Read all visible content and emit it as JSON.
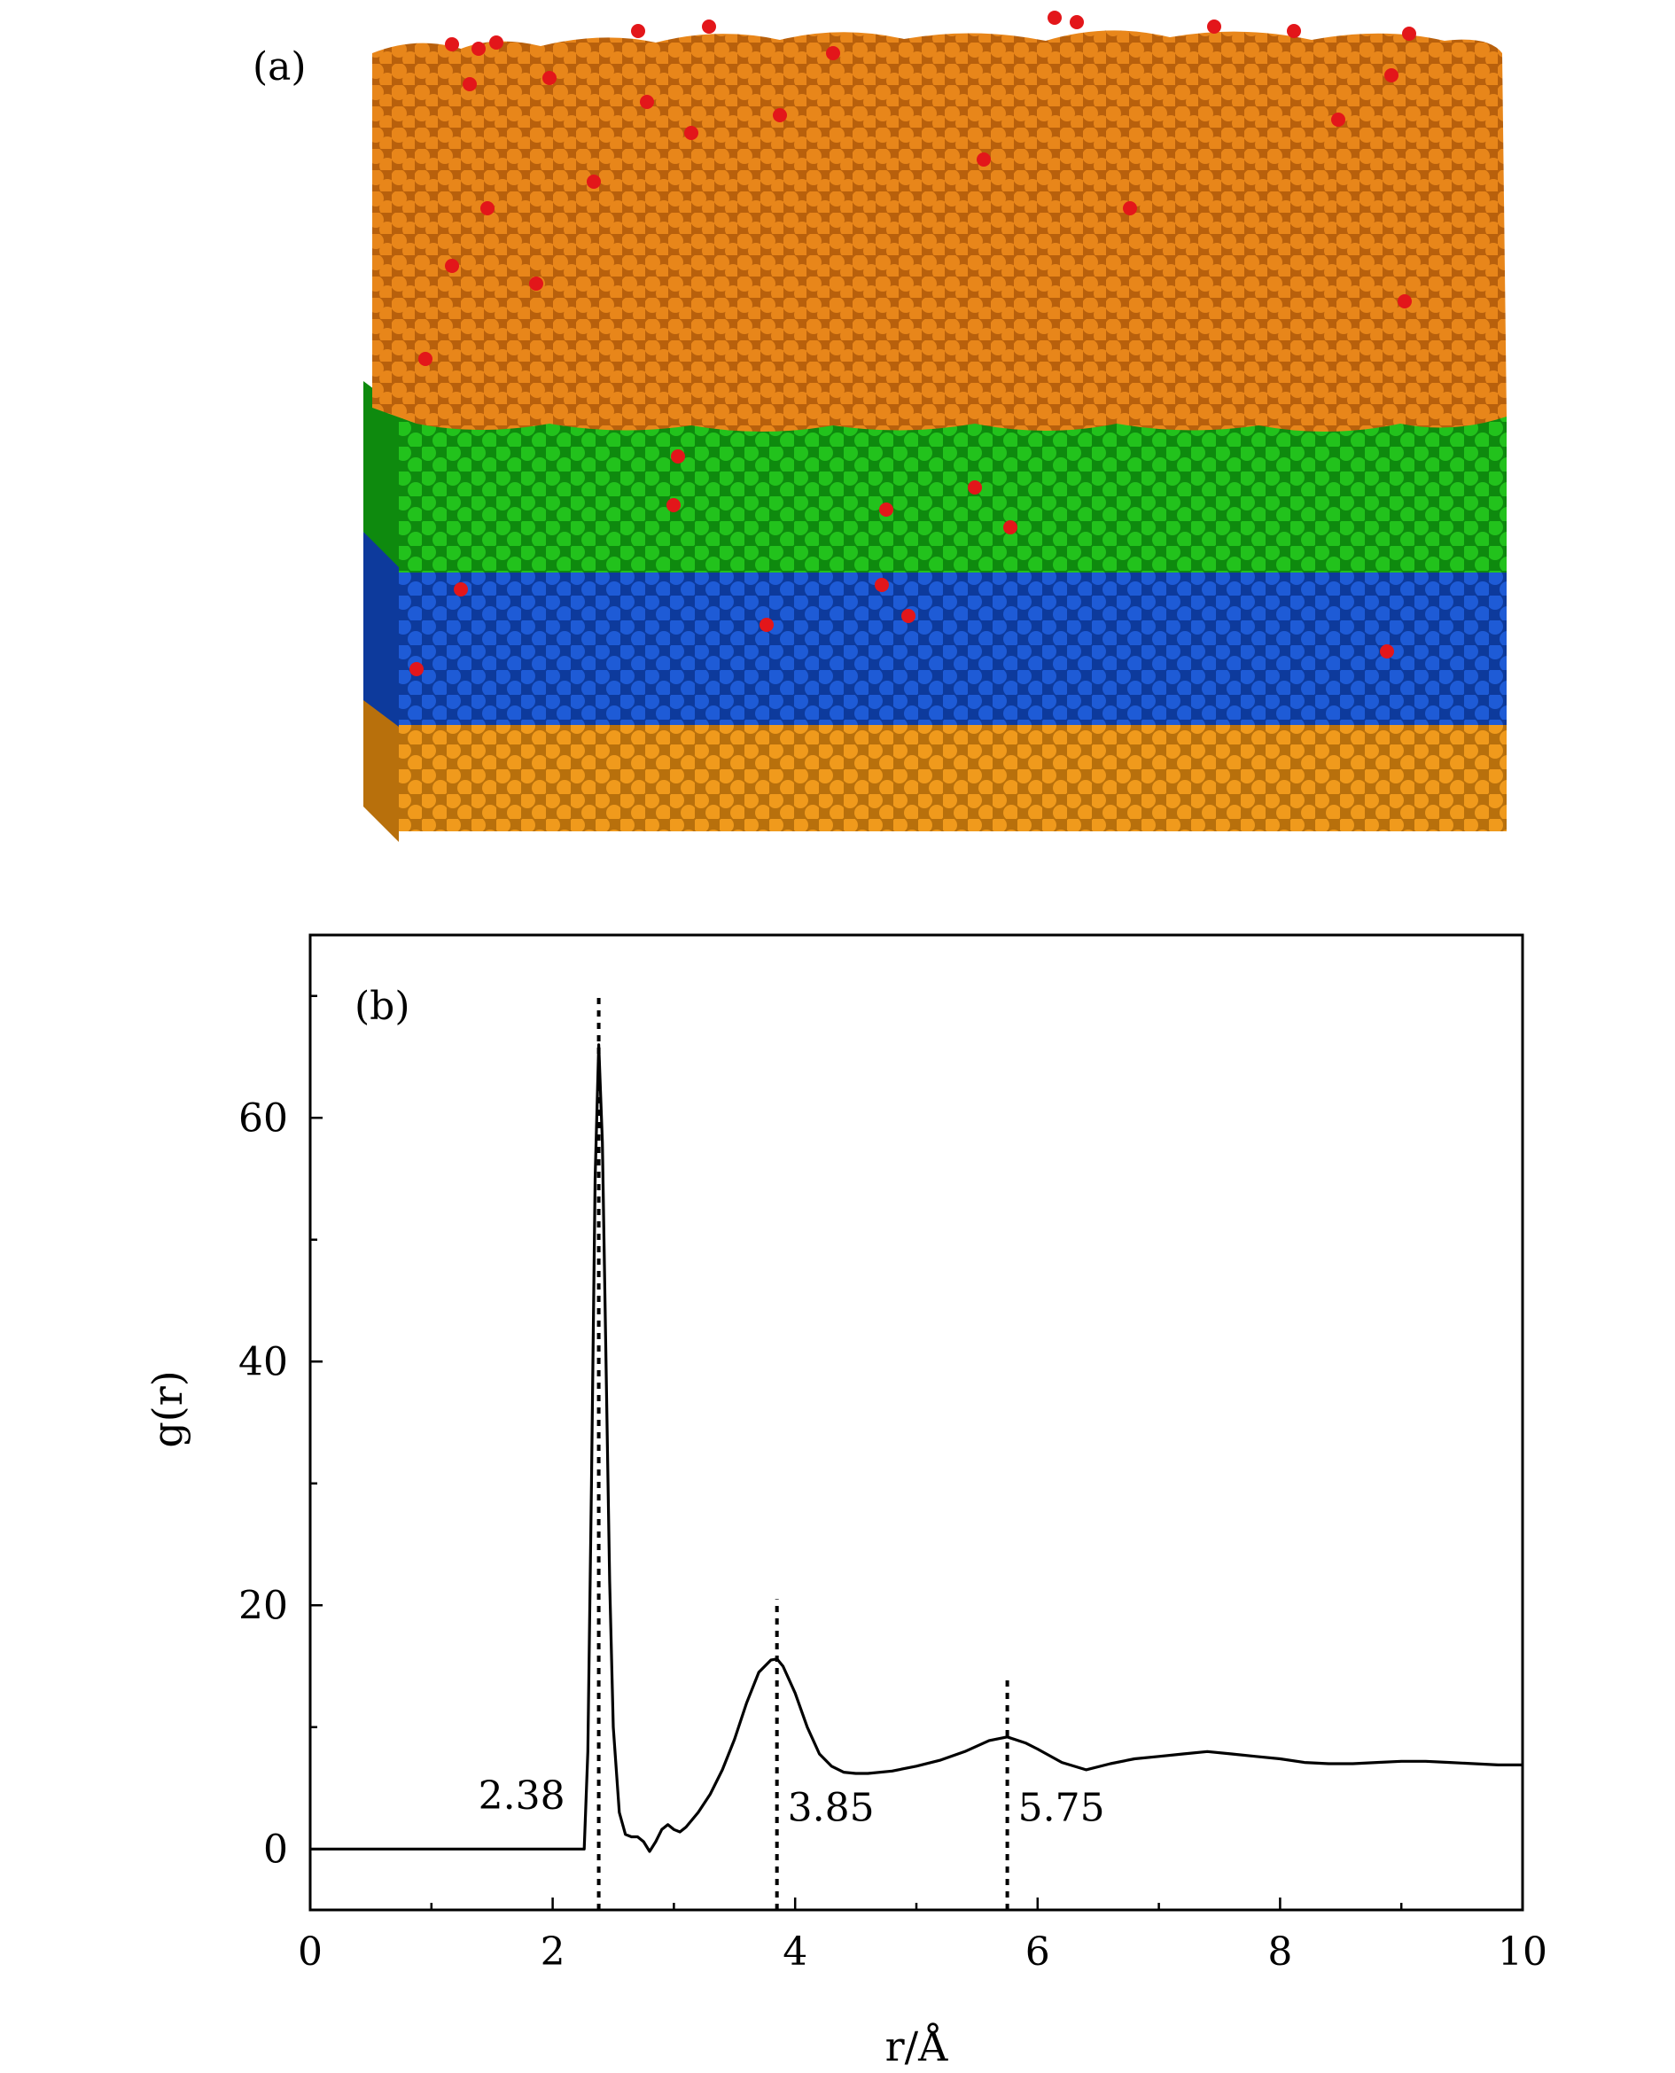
{
  "panel_a": {
    "label": "(a)",
    "layers": [
      {
        "name": "top-film",
        "color": "#E8861A",
        "shade": "#B8600C"
      },
      {
        "name": "green-layer",
        "color": "#22C21C",
        "shade": "#0E8A0E"
      },
      {
        "name": "blue-layer",
        "color": "#1E5BD6",
        "shade": "#0D3A9C"
      },
      {
        "name": "bottom-substrate",
        "color": "#F09A1C",
        "shade": "#B8700C"
      }
    ],
    "defect_color": "#E3161A"
  },
  "chart_data": {
    "type": "line",
    "panel_label": "(b)",
    "xlabel": "r/Å",
    "ylabel": "g(r)",
    "xlim": [
      0,
      10
    ],
    "ylim": [
      -5,
      75
    ],
    "x_ticks": [
      "0",
      "2",
      "4",
      "6",
      "8",
      "10"
    ],
    "y_ticks": [
      "0",
      "20",
      "40",
      "60"
    ],
    "series": [
      {
        "x": [
          0,
          0.5,
          1.0,
          1.5,
          2.0,
          2.26,
          2.29,
          2.32,
          2.35,
          2.38,
          2.41,
          2.44,
          2.47,
          2.5,
          2.55,
          2.6,
          2.65,
          2.7,
          2.75,
          2.8,
          2.85,
          2.9,
          2.95,
          3.0,
          3.05,
          3.1,
          3.2,
          3.3,
          3.4,
          3.5,
          3.6,
          3.7,
          3.8,
          3.85,
          3.9,
          4.0,
          4.1,
          4.2,
          4.3,
          4.4,
          4.5,
          4.6,
          4.8,
          5.0,
          5.2,
          5.4,
          5.6,
          5.75,
          5.9,
          6.0,
          6.2,
          6.4,
          6.6,
          6.8,
          7.0,
          7.2,
          7.4,
          7.6,
          7.8,
          8.0,
          8.2,
          8.4,
          8.6,
          8.8,
          9.0,
          9.2,
          9.4,
          9.6,
          9.8,
          10.0
        ],
        "values": [
          0,
          0,
          0,
          0,
          0,
          0,
          8,
          30,
          55,
          66,
          58,
          40,
          22,
          10,
          3,
          1.2,
          1.0,
          1.0,
          0.6,
          -0.2,
          0.6,
          1.6,
          2.0,
          1.6,
          1.4,
          1.8,
          3.0,
          4.5,
          6.5,
          9.0,
          12.0,
          14.5,
          15.5,
          15.6,
          15.0,
          12.8,
          10.0,
          7.8,
          6.8,
          6.3,
          6.2,
          6.2,
          6.4,
          6.8,
          7.3,
          8.0,
          8.9,
          9.2,
          8.7,
          8.2,
          7.1,
          6.5,
          7.0,
          7.4,
          7.6,
          7.8,
          8.0,
          7.8,
          7.6,
          7.4,
          7.1,
          7.0,
          7.0,
          7.1,
          7.2,
          7.2,
          7.1,
          7.0,
          6.9,
          6.9
        ]
      }
    ],
    "reference_lines": [
      {
        "x": 2.38,
        "y_top": 70,
        "label": "2.38"
      },
      {
        "x": 3.85,
        "y_top": 20.5,
        "label": "3.85"
      },
      {
        "x": 5.75,
        "y_top": 14,
        "label": "5.75"
      }
    ],
    "grid": false
  }
}
